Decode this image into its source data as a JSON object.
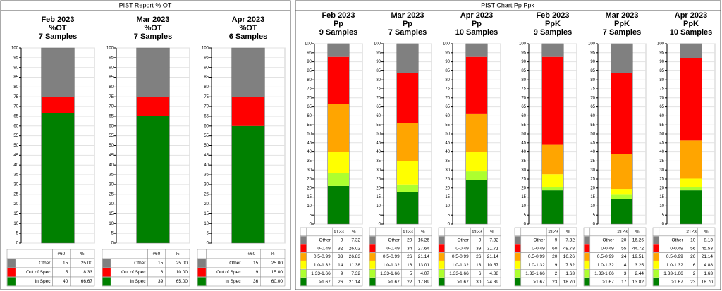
{
  "panels": [
    {
      "title": "PIST Report % OT"
    },
    {
      "title": "PIST Chart Pp Ppk"
    }
  ],
  "chart_data": [
    {
      "type": "stacked-bar",
      "title": [
        "Feb 2023",
        "%OT",
        "7 Samples"
      ],
      "ylim": [
        0,
        100
      ],
      "yticks": [
        0,
        5,
        10,
        15,
        20,
        25,
        30,
        35,
        40,
        45,
        50,
        55,
        60,
        65,
        70,
        75,
        80,
        85,
        90,
        95,
        100
      ],
      "table_header": [
        "#60",
        "%"
      ],
      "series": [
        {
          "name": "Other",
          "color": "#808080",
          "count": 15,
          "values": [
            25
          ],
          "value_labels": [
            "25.00"
          ]
        },
        {
          "name": "Out of Spec",
          "color": "#ff0000",
          "count": 5,
          "values": [
            8.33
          ],
          "value_labels": [
            "8.33"
          ]
        },
        {
          "name": "In Spec",
          "color": "#008000",
          "count": 40,
          "values": [
            66.67
          ],
          "value_labels": [
            "66.67"
          ]
        }
      ]
    },
    {
      "type": "stacked-bar",
      "title": [
        "Mar 2023",
        "%OT",
        "7 Samples"
      ],
      "ylim": [
        0,
        100
      ],
      "yticks": [
        0,
        5,
        10,
        15,
        20,
        25,
        30,
        35,
        40,
        45,
        50,
        55,
        60,
        65,
        70,
        75,
        80,
        85,
        90,
        95,
        100
      ],
      "table_header": [
        "#60",
        "%"
      ],
      "series": [
        {
          "name": "Other",
          "color": "#808080",
          "count": 15,
          "values": [
            25
          ],
          "value_labels": [
            "25.00"
          ]
        },
        {
          "name": "Out of Spec",
          "color": "#ff0000",
          "count": 6,
          "values": [
            10
          ],
          "value_labels": [
            "10.00"
          ]
        },
        {
          "name": "In Spec",
          "color": "#008000",
          "count": 39,
          "values": [
            65
          ],
          "value_labels": [
            "65.00"
          ]
        }
      ]
    },
    {
      "type": "stacked-bar",
      "title": [
        "Apr 2023",
        "%OT",
        "6 Samples"
      ],
      "ylim": [
        0,
        100
      ],
      "yticks": [
        0,
        5,
        10,
        15,
        20,
        25,
        30,
        35,
        40,
        45,
        50,
        55,
        60,
        65,
        70,
        75,
        80,
        85,
        90,
        95,
        100
      ],
      "table_header": [
        "#60",
        "%"
      ],
      "series": [
        {
          "name": "Other",
          "color": "#808080",
          "count": 15,
          "values": [
            25
          ],
          "value_labels": [
            "25.00"
          ]
        },
        {
          "name": "Out of Spec",
          "color": "#ff0000",
          "count": 9,
          "values": [
            15
          ],
          "value_labels": [
            "15.00"
          ]
        },
        {
          "name": "In Spec",
          "color": "#008000",
          "count": 36,
          "values": [
            60
          ],
          "value_labels": [
            "60.00"
          ]
        }
      ]
    },
    {
      "type": "stacked-bar",
      "title": [
        "Feb 2023",
        "Pp",
        "9 Samples"
      ],
      "ylim": [
        0,
        100
      ],
      "yticks": [
        0,
        5,
        10,
        15,
        20,
        25,
        30,
        35,
        40,
        45,
        50,
        55,
        60,
        65,
        70,
        75,
        80,
        85,
        90,
        95,
        100
      ],
      "table_header": [
        "#123",
        "%"
      ],
      "series": [
        {
          "name": "Other",
          "color": "#808080",
          "count": 9,
          "values": [
            7.32
          ],
          "value_labels": [
            "7.32"
          ]
        },
        {
          "name": "0-0.49",
          "color": "#ff0000",
          "count": 32,
          "values": [
            26.02
          ],
          "value_labels": [
            "26.02"
          ]
        },
        {
          "name": "0.5-0.99",
          "color": "#ffa500",
          "count": 33,
          "values": [
            26.83
          ],
          "value_labels": [
            "26.83"
          ]
        },
        {
          "name": "1.0-1.32",
          "color": "#ffff00",
          "count": 14,
          "values": [
            11.38
          ],
          "value_labels": [
            "11.38"
          ]
        },
        {
          "name": "1.33-1.66",
          "color": "#adff2f",
          "count": 9,
          "values": [
            7.32
          ],
          "value_labels": [
            "7.32"
          ]
        },
        {
          "name": ">1.67",
          "color": "#008000",
          "count": 26,
          "values": [
            21.14
          ],
          "value_labels": [
            "21.14"
          ]
        }
      ]
    },
    {
      "type": "stacked-bar",
      "title": [
        "Mar 2023",
        "Pp",
        "7 Samples"
      ],
      "ylim": [
        0,
        100
      ],
      "yticks": [
        0,
        5,
        10,
        15,
        20,
        25,
        30,
        35,
        40,
        45,
        50,
        55,
        60,
        65,
        70,
        75,
        80,
        85,
        90,
        95,
        100
      ],
      "table_header": [
        "#123",
        "%"
      ],
      "series": [
        {
          "name": "Other",
          "color": "#808080",
          "count": 20,
          "values": [
            16.26
          ],
          "value_labels": [
            "16.26"
          ]
        },
        {
          "name": "0-0.49",
          "color": "#ff0000",
          "count": 34,
          "values": [
            27.64
          ],
          "value_labels": [
            "27.64"
          ]
        },
        {
          "name": "0.5-0.99",
          "color": "#ffa500",
          "count": 26,
          "values": [
            21.14
          ],
          "value_labels": [
            "21.14"
          ]
        },
        {
          "name": "1.0-1.32",
          "color": "#ffff00",
          "count": 16,
          "values": [
            13.01
          ],
          "value_labels": [
            "13.01"
          ]
        },
        {
          "name": "1.33-1.66",
          "color": "#adff2f",
          "count": 5,
          "values": [
            4.07
          ],
          "value_labels": [
            "4.07"
          ]
        },
        {
          "name": ">1.67",
          "color": "#008000",
          "count": 22,
          "values": [
            17.89
          ],
          "value_labels": [
            "17.89"
          ]
        }
      ]
    },
    {
      "type": "stacked-bar",
      "title": [
        "Apr 2023",
        "Pp",
        "10 Samples"
      ],
      "ylim": [
        0,
        100
      ],
      "yticks": [
        0,
        5,
        10,
        15,
        20,
        25,
        30,
        35,
        40,
        45,
        50,
        55,
        60,
        65,
        70,
        75,
        80,
        85,
        90,
        95,
        100
      ],
      "table_header": [
        "#123",
        "%"
      ],
      "series": [
        {
          "name": "Other",
          "color": "#808080",
          "count": 9,
          "values": [
            7.32
          ],
          "value_labels": [
            "7.32"
          ]
        },
        {
          "name": "0-0.49",
          "color": "#ff0000",
          "count": 39,
          "values": [
            31.71
          ],
          "value_labels": [
            "31.71"
          ]
        },
        {
          "name": "0.5-0.99",
          "color": "#ffa500",
          "count": 26,
          "values": [
            21.14
          ],
          "value_labels": [
            "21.14"
          ]
        },
        {
          "name": "1.0-1.32",
          "color": "#ffff00",
          "count": 13,
          "values": [
            10.57
          ],
          "value_labels": [
            "10.57"
          ]
        },
        {
          "name": "1.33-1.66",
          "color": "#adff2f",
          "count": 6,
          "values": [
            4.88
          ],
          "value_labels": [
            "4.88"
          ]
        },
        {
          "name": ">1.67",
          "color": "#008000",
          "count": 30,
          "values": [
            24.39
          ],
          "value_labels": [
            "24.39"
          ]
        }
      ]
    },
    {
      "type": "stacked-bar",
      "title": [
        "Feb 2023",
        "PpK",
        "9 Samples"
      ],
      "ylim": [
        0,
        100
      ],
      "yticks": [
        0,
        5,
        10,
        15,
        20,
        25,
        30,
        35,
        40,
        45,
        50,
        55,
        60,
        65,
        70,
        75,
        80,
        85,
        90,
        95,
        100
      ],
      "table_header": [
        "#123",
        "%"
      ],
      "series": [
        {
          "name": "Other",
          "color": "#808080",
          "count": 9,
          "values": [
            7.32
          ],
          "value_labels": [
            "7.32"
          ]
        },
        {
          "name": "0-0.49",
          "color": "#ff0000",
          "count": 60,
          "values": [
            48.78
          ],
          "value_labels": [
            "48.78"
          ]
        },
        {
          "name": "0.5-0.99",
          "color": "#ffa500",
          "count": 20,
          "values": [
            16.26
          ],
          "value_labels": [
            "16.26"
          ]
        },
        {
          "name": "1.0-1.32",
          "color": "#ffff00",
          "count": 9,
          "values": [
            7.32
          ],
          "value_labels": [
            "7.32"
          ]
        },
        {
          "name": "1.33-1.66",
          "color": "#adff2f",
          "count": 2,
          "values": [
            1.63
          ],
          "value_labels": [
            "1.63"
          ]
        },
        {
          "name": ">1.67",
          "color": "#008000",
          "count": 23,
          "values": [
            18.7
          ],
          "value_labels": [
            "18.70"
          ]
        }
      ]
    },
    {
      "type": "stacked-bar",
      "title": [
        "Mar 2023",
        "PpK",
        "7 Samples"
      ],
      "ylim": [
        0,
        100
      ],
      "yticks": [
        0,
        5,
        10,
        15,
        20,
        25,
        30,
        35,
        40,
        45,
        50,
        55,
        60,
        65,
        70,
        75,
        80,
        85,
        90,
        95,
        100
      ],
      "table_header": [
        "#123",
        "%"
      ],
      "series": [
        {
          "name": "Other",
          "color": "#808080",
          "count": 20,
          "values": [
            16.26
          ],
          "value_labels": [
            "16.26"
          ]
        },
        {
          "name": "0-0.49",
          "color": "#ff0000",
          "count": 55,
          "values": [
            44.72
          ],
          "value_labels": [
            "44.72"
          ]
        },
        {
          "name": "0.5-0.99",
          "color": "#ffa500",
          "count": 24,
          "values": [
            19.51
          ],
          "value_labels": [
            "19.51"
          ]
        },
        {
          "name": "1.0-1.32",
          "color": "#ffff00",
          "count": 4,
          "values": [
            3.25
          ],
          "value_labels": [
            "3.25"
          ]
        },
        {
          "name": "1.33-1.66",
          "color": "#adff2f",
          "count": 3,
          "values": [
            2.44
          ],
          "value_labels": [
            "2.44"
          ]
        },
        {
          "name": ">1.67",
          "color": "#008000",
          "count": 17,
          "values": [
            13.82
          ],
          "value_labels": [
            "13.82"
          ]
        }
      ]
    },
    {
      "type": "stacked-bar",
      "title": [
        "Apr 2023",
        "PpK",
        "10 Samples"
      ],
      "ylim": [
        0,
        100
      ],
      "yticks": [
        0,
        5,
        10,
        15,
        20,
        25,
        30,
        35,
        40,
        45,
        50,
        55,
        60,
        65,
        70,
        75,
        80,
        85,
        90,
        95,
        100
      ],
      "table_header": [
        "#123",
        "%"
      ],
      "series": [
        {
          "name": "Other",
          "color": "#808080",
          "count": 10,
          "values": [
            8.13
          ],
          "value_labels": [
            "8.13"
          ]
        },
        {
          "name": "0-0.49",
          "color": "#ff0000",
          "count": 56,
          "values": [
            45.53
          ],
          "value_labels": [
            "45.53"
          ]
        },
        {
          "name": "0.5-0.99",
          "color": "#ffa500",
          "count": 26,
          "values": [
            21.14
          ],
          "value_labels": [
            "21.14"
          ]
        },
        {
          "name": "1.0-1.32",
          "color": "#ffff00",
          "count": 6,
          "values": [
            4.88
          ],
          "value_labels": [
            "4.88"
          ]
        },
        {
          "name": "1.33-1.66",
          "color": "#adff2f",
          "count": 2,
          "values": [
            1.63
          ],
          "value_labels": [
            "1.63"
          ]
        },
        {
          "name": ">1.67",
          "color": "#008000",
          "count": 23,
          "values": [
            18.7
          ],
          "value_labels": [
            "18.70"
          ]
        }
      ]
    }
  ]
}
